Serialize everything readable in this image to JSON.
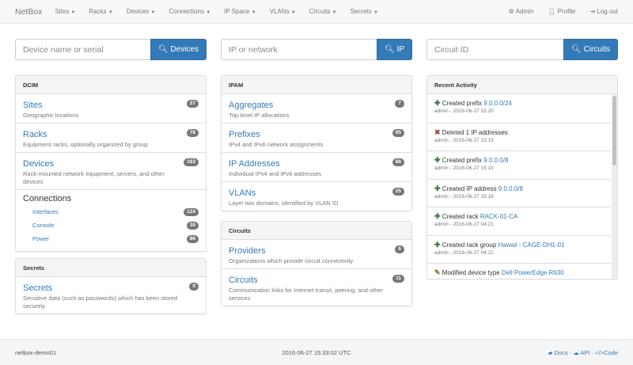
{
  "nav": {
    "brand": "NetBox",
    "menus": [
      "Sites",
      "Racks",
      "Devices",
      "Connections",
      "IP Space",
      "VLANs",
      "Circuits",
      "Secrets"
    ],
    "admin": "Admin",
    "profile": "Profile",
    "logout": "Log out"
  },
  "search": [
    {
      "placeholder": "Device name or serial",
      "button": "Devices"
    },
    {
      "placeholder": "IP or network",
      "button": "IP"
    },
    {
      "placeholder": "Circuit ID",
      "button": "Circuits"
    }
  ],
  "dcim": {
    "title": "DCIM",
    "items": [
      {
        "label": "Sites",
        "desc": "Geographic locations",
        "count": "27"
      },
      {
        "label": "Racks",
        "desc": "Equipment racks, optionally organized by group",
        "count": "78"
      },
      {
        "label": "Devices",
        "desc": "Rack-mounted network equipment, servers, and other devices",
        "count": "163"
      }
    ],
    "connections": {
      "label": "Connections",
      "items": [
        {
          "label": "Interfaces",
          "count": "124"
        },
        {
          "label": "Console",
          "count": "30"
        },
        {
          "label": "Power",
          "count": "86"
        }
      ]
    }
  },
  "secrets": {
    "title": "Secrets",
    "items": [
      {
        "label": "Secrets",
        "desc": "Sensitive data (such as passwords) which has been stored securely",
        "count": "0"
      }
    ]
  },
  "ipam": {
    "title": "IPAM",
    "items": [
      {
        "label": "Aggregates",
        "desc": "Top-level IP allocations",
        "count": "7"
      },
      {
        "label": "Prefixes",
        "desc": "IPv4 and IPv6 network assignments",
        "count": "95"
      },
      {
        "label": "IP Addresses",
        "desc": "Individual IPv4 and IPv6 addresses",
        "count": "88"
      },
      {
        "label": "VLANs",
        "desc": "Layer two domains, identified by VLAN ID",
        "count": "25"
      }
    ]
  },
  "circuits": {
    "title": "Circuits",
    "items": [
      {
        "label": "Providers",
        "desc": "Organizations which provide circuit connectivity",
        "count": "6"
      },
      {
        "label": "Circuits",
        "desc": "Communication links for Internet transit, peering, and other services",
        "count": "11"
      }
    ]
  },
  "activity": {
    "title": "Recent Activity",
    "items": [
      {
        "icon": "plus",
        "text": "Created prefix",
        "link": "9.0.0.0/24",
        "meta": "admin - 2016-06-27 15:20"
      },
      {
        "icon": "remove",
        "text": "Deleted 1 IP addresses",
        "link": "",
        "meta": "admin - 2016-06-27 15:19"
      },
      {
        "icon": "plus",
        "text": "Created prefix",
        "link": "9.0.0.0/8",
        "meta": "admin - 2016-06-27 15:19"
      },
      {
        "icon": "plus",
        "text": "Created IP address",
        "link": "9.0.0.0/8",
        "meta": "admin - 2016-06-27 15:18"
      },
      {
        "icon": "plus",
        "text": "Created rack",
        "link": "RACK-01-CA",
        "meta": "admin - 2016-06-27 04:21"
      },
      {
        "icon": "plus",
        "text": "Created rack group",
        "link": "Hawaii - CAGE-DH1-01",
        "meta": "admin - 2016-06-27 04:21"
      },
      {
        "icon": "pencil",
        "text": "Modified device type",
        "link": "Dell PowerEdge R630",
        "meta": ""
      }
    ]
  },
  "footer": {
    "host": "netbox-demo01",
    "time": "2016-06-27 15:33:02 UTC",
    "docs": "Docs",
    "api": "API",
    "code": "Code",
    "sep": "·"
  },
  "colors": {
    "primary": "#337ab7",
    "plus": "#3c763d",
    "remove": "#a94442",
    "pencil": "#8a6d3b"
  }
}
